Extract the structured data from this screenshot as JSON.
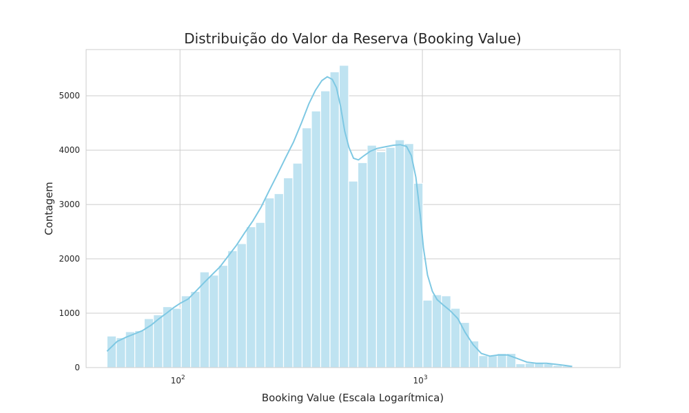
{
  "chart_data": {
    "type": "bar",
    "title": "Distribuição do Valor da Reserva (Booking Value)",
    "xlabel": "Booking Value (Escala Logarítmica)",
    "ylabel": "Contagem",
    "x_scale": "log",
    "xlim": [
      41,
      6540
    ],
    "ylim": [
      0,
      5850
    ],
    "grid": true,
    "x_ticks": [
      {
        "value": 100,
        "base": "10",
        "exp": "2"
      },
      {
        "value": 1000,
        "base": "10",
        "exp": "3"
      }
    ],
    "y_ticks": [
      0,
      1000,
      2000,
      3000,
      4000,
      5000
    ],
    "colors": {
      "bar": "#bfe3f1",
      "kde": "#7ec8e3",
      "grid": "#cccccc",
      "frame": "#cccccc"
    },
    "bins": {
      "edges": [
        50,
        54.6,
        59.6,
        65.1,
        71.2,
        77.7,
        84.9,
        92.7,
        101.3,
        110.6,
        120.8,
        132,
        144.1,
        157.4,
        172,
        187.8,
        205.2,
        224.1,
        244.8,
        267.4,
        292.1,
        319,
        348.5,
        380.6,
        415.8,
        454.1,
        496.1,
        541.8,
        591.9,
        646.5,
        706.1,
        771.3,
        842.5,
        920.2,
        1005.1,
        1097.8,
        1199.1,
        1309.8,
        1430.6,
        1562.7,
        1706.9,
        1864.4,
        2036.4,
        2224.3,
        2429.5,
        2653.7,
        2898.6,
        3166.1,
        3458.2,
        3777.3,
        4125.9
      ],
      "counts": [
        580,
        550,
        660,
        680,
        900,
        970,
        1120,
        1090,
        1320,
        1400,
        1760,
        1700,
        1880,
        2150,
        2280,
        2590,
        2670,
        3120,
        3200,
        3490,
        3760,
        4410,
        4720,
        5090,
        5440,
        5560,
        3430,
        3770,
        4090,
        3970,
        4050,
        4190,
        4120,
        3390,
        1240,
        1340,
        1320,
        1090,
        830,
        490,
        220,
        220,
        260,
        260,
        70,
        80,
        80,
        70,
        40,
        30
      ]
    },
    "kde": {
      "x": [
        50,
        55,
        60,
        65,
        70,
        76,
        82,
        88,
        94,
        100,
        108,
        116,
        125,
        135,
        146,
        158,
        171,
        185,
        200,
        216,
        233,
        252,
        272,
        294,
        317,
        340,
        362,
        385,
        405,
        425,
        442,
        460,
        478,
        498,
        520,
        545,
        575,
        610,
        650,
        700,
        760,
        810,
        860,
        900,
        940,
        980,
        1010,
        1050,
        1100,
        1150,
        1220,
        1300,
        1400,
        1500,
        1620,
        1750,
        1900,
        2050,
        2250,
        2450,
        2700,
        2950,
        3250,
        3550,
        3850,
        4150
      ],
      "y": [
        300,
        480,
        560,
        620,
        680,
        780,
        900,
        1000,
        1100,
        1180,
        1260,
        1400,
        1550,
        1700,
        1850,
        2050,
        2250,
        2480,
        2700,
        2950,
        3250,
        3550,
        3850,
        4150,
        4500,
        4850,
        5100,
        5280,
        5350,
        5300,
        5150,
        4800,
        4350,
        4050,
        3850,
        3820,
        3900,
        3980,
        4030,
        4060,
        4090,
        4100,
        4070,
        3900,
        3500,
        2800,
        2200,
        1700,
        1400,
        1250,
        1150,
        1050,
        900,
        650,
        420,
        260,
        210,
        230,
        230,
        170,
        100,
        80,
        80,
        60,
        40,
        20
      ]
    }
  }
}
